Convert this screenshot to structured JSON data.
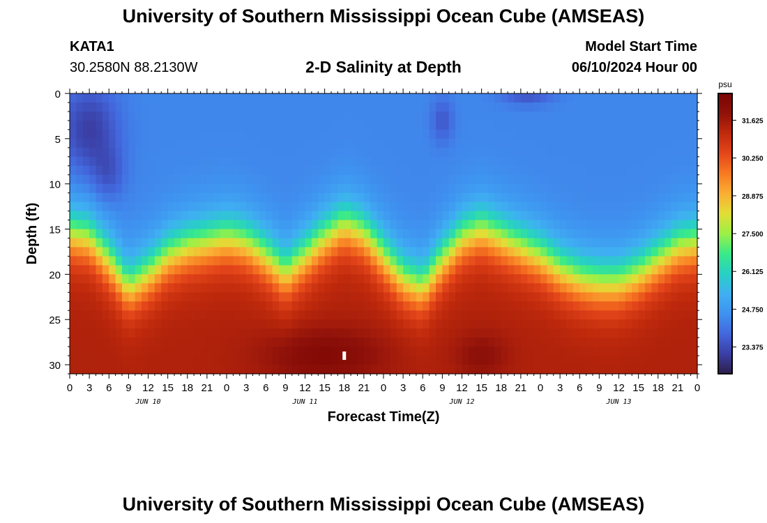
{
  "header": {
    "title": "University of Southern Mississippi Ocean Cube (AMSEAS)",
    "station": "KATA1",
    "coords": "30.2580N  88.2130W",
    "subtitle": "2-D Salinity at Depth",
    "model_start_label": "Model Start Time",
    "model_start_date": "06/10/2024 Hour 00"
  },
  "footer": {
    "title": "University of Southern Mississippi Ocean Cube (AMSEAS)"
  },
  "chart_data": {
    "type": "heatmap",
    "title": "2-D Salinity at Depth",
    "xlabel": "Forecast Time(Z)",
    "ylabel": "Depth (ft)",
    "x_hours_range": [
      0,
      96
    ],
    "ylim": [
      0,
      31
    ],
    "y_inverted": true,
    "x_tick_labels": [
      "0",
      "3",
      "6",
      "9",
      "12",
      "15",
      "18",
      "21",
      "0",
      "3",
      "6",
      "9",
      "12",
      "15",
      "18",
      "21",
      "0",
      "3",
      "6",
      "9",
      "12",
      "15",
      "18",
      "21",
      "0",
      "3",
      "6",
      "9",
      "12",
      "15",
      "18",
      "21",
      "0"
    ],
    "y_ticks": [
      0,
      5,
      10,
      15,
      20,
      25,
      30
    ],
    "y_tick_labels": [
      "0",
      "5",
      "10",
      "15",
      "20",
      "25",
      "30"
    ],
    "day_labels": [
      {
        "label": "JUN 10",
        "hour": 12
      },
      {
        "label": "JUN 11",
        "hour": 36
      },
      {
        "label": "JUN 12",
        "hour": 60
      },
      {
        "label": "JUN 13",
        "hour": 84
      }
    ],
    "colorbar": {
      "unit": "psu",
      "range": [
        22.4,
        32.6
      ],
      "tick_values": [
        23.375,
        24.75,
        26.125,
        27.5,
        28.875,
        30.25,
        31.625
      ],
      "tick_labels": [
        "23.375",
        "24.750",
        "26.125",
        "27.500",
        "28.875",
        "30.250",
        "31.625"
      ],
      "colors": [
        "#2d1e4a",
        "#3b3fa6",
        "#4367dd",
        "#3f92f0",
        "#3fb0f2",
        "#27d0c4",
        "#3aea88",
        "#9cf046",
        "#e2dd36",
        "#fbae34",
        "#f77a21",
        "#e4461a",
        "#c02a0c",
        "#90120a",
        "#7a0403"
      ]
    },
    "halocline": {
      "depth_at_hour": [
        [
          0,
          15.5
        ],
        [
          3,
          16
        ],
        [
          6,
          18.5
        ],
        [
          9,
          21.5
        ],
        [
          12,
          20
        ],
        [
          15,
          18
        ],
        [
          18,
          17
        ],
        [
          21,
          16.5
        ],
        [
          24,
          16
        ],
        [
          27,
          16.5
        ],
        [
          30,
          18
        ],
        [
          33,
          20
        ],
        [
          36,
          18
        ],
        [
          39,
          16
        ],
        [
          42,
          14.5
        ],
        [
          45,
          15.5
        ],
        [
          48,
          18
        ],
        [
          51,
          20.5
        ],
        [
          54,
          21.5
        ],
        [
          57,
          18.5
        ],
        [
          60,
          16
        ],
        [
          63,
          15
        ],
        [
          66,
          16
        ],
        [
          69,
          17
        ],
        [
          72,
          18
        ],
        [
          75,
          19.5
        ],
        [
          78,
          20.5
        ],
        [
          81,
          21
        ],
        [
          84,
          21
        ],
        [
          87,
          20
        ],
        [
          90,
          18.5
        ],
        [
          93,
          17
        ],
        [
          96,
          16.5
        ]
      ],
      "surface_salinity": 24.4,
      "deep_salinity": 31.4
    },
    "fresh_anomalies": [
      {
        "hour": 3,
        "depth": 4,
        "dx": 4.5,
        "dy": 5,
        "delta": -1.3
      },
      {
        "hour": 6,
        "depth": 9,
        "dx": 2.5,
        "dy": 3,
        "delta": -0.7
      },
      {
        "hour": 57,
        "depth": 3,
        "dx": 1.7,
        "dy": 2.5,
        "delta": -0.8
      },
      {
        "hour": 70,
        "depth": 0,
        "dx": 4,
        "dy": 1.3,
        "delta": -0.9
      }
    ],
    "salty_anomalies": [
      {
        "hour": 39,
        "depth": 29,
        "dx": 9,
        "dy": 3,
        "delta": 0.9
      },
      {
        "hour": 63,
        "depth": 29,
        "dx": 4,
        "dy": 2.5,
        "delta": 0.6
      }
    ],
    "missing_marker": {
      "hour": 42,
      "depth": 29
    }
  }
}
